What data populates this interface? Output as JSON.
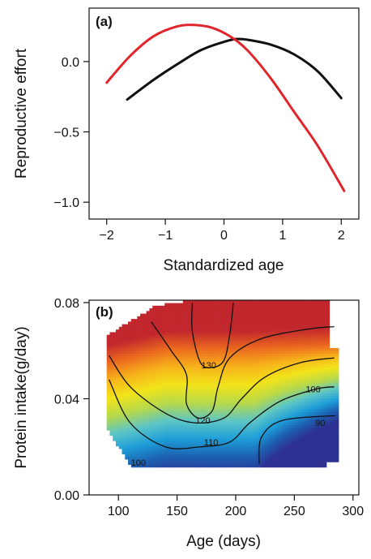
{
  "chart_data": [
    {
      "panel_label": "(a)",
      "type": "line",
      "xlabel": "Standardized age",
      "ylabel": "Reproductive effort",
      "xlim": [
        -2.3,
        2.3
      ],
      "ylim": [
        -1.12,
        0.38
      ],
      "xticks": [
        -2,
        -1,
        0,
        1,
        2
      ],
      "xtick_labels": [
        "−2",
        "−1",
        "0",
        "1",
        "2"
      ],
      "yticks": [
        0.0,
        -0.5,
        -1.0
      ],
      "ytick_labels": [
        "0.0",
        "−0.5",
        "−1.0"
      ],
      "series": [
        {
          "color": "#111111",
          "x": [
            -1.65,
            -1.2,
            -0.8,
            -0.4,
            0.0,
            0.2,
            0.4,
            0.8,
            1.2,
            1.6,
            2.0
          ],
          "y": [
            -0.27,
            -0.13,
            -0.02,
            0.08,
            0.14,
            0.16,
            0.155,
            0.12,
            0.05,
            -0.07,
            -0.26
          ]
        },
        {
          "color": "#e0262c",
          "x": [
            -2.0,
            -1.6,
            -1.2,
            -0.8,
            -0.5,
            -0.2,
            0.1,
            0.4,
            0.8,
            1.2,
            1.6,
            2.05
          ],
          "y": [
            -0.15,
            0.04,
            0.18,
            0.25,
            0.26,
            0.24,
            0.18,
            0.08,
            -0.12,
            -0.36,
            -0.6,
            -0.92
          ]
        }
      ]
    },
    {
      "panel_label": "(b)",
      "type": "heatmap",
      "xlabel": "Age (days)",
      "ylabel": "Protein intake(g/day)",
      "xlim": [
        75,
        305
      ],
      "ylim": [
        0.0,
        0.081
      ],
      "xticks": [
        100,
        150,
        200,
        250,
        300
      ],
      "xtick_labels": [
        "100",
        "150",
        "200",
        "250",
        "300"
      ],
      "yticks": [
        0.0,
        0.04,
        0.08
      ],
      "ytick_labels": [
        "0.00",
        "0.04",
        "0.08"
      ],
      "colorscale": [
        "#2e3192",
        "#1c5fb0",
        "#1e9ed8",
        "#5cc5c6",
        "#b7d94a",
        "#f2e41a",
        "#f7b41a",
        "#ec6a1f",
        "#c1272d"
      ],
      "surface_model": {
        "base": 113,
        "age_center": 175,
        "age_coef": -0.0055,
        "age_coef2": 0.00012,
        "protein_center": 0.04,
        "protein_coef": 900
      },
      "contours": [
        {
          "label": "90",
          "points": [
            [
              220,
              0.013
            ],
            [
              222,
              0.024
            ],
            [
              240,
              0.031
            ],
            [
              285,
              0.033
            ]
          ]
        },
        {
          "label": "100",
          "points": [
            [
              92,
              0.048
            ],
            [
              110,
              0.03
            ],
            [
              140,
              0.02
            ],
            [
              170,
              0.02
            ],
            [
              195,
              0.022
            ],
            [
              212,
              0.03
            ],
            [
              238,
              0.039
            ],
            [
              268,
              0.044
            ],
            [
              284,
              0.045
            ]
          ]
        },
        {
          "label": "110",
          "points": [
            [
              92,
              0.058
            ],
            [
              110,
              0.045
            ],
            [
              140,
              0.034
            ],
            [
              165,
              0.03
            ],
            [
              190,
              0.032
            ],
            [
              205,
              0.04
            ],
            [
              225,
              0.049
            ],
            [
              255,
              0.055
            ],
            [
              284,
              0.057
            ]
          ]
        },
        {
          "label": "120",
          "points": [
            [
              128,
              0.072
            ],
            [
              145,
              0.06
            ],
            [
              158,
              0.05
            ],
            [
              158,
              0.038
            ],
            [
              168,
              0.032
            ],
            [
              180,
              0.035
            ],
            [
              185,
              0.045
            ],
            [
              195,
              0.057
            ],
            [
              222,
              0.065
            ],
            [
              262,
              0.069
            ],
            [
              284,
              0.07
            ]
          ]
        },
        {
          "label": "130",
          "points": [
            [
              163,
              0.08
            ],
            [
              163,
              0.068
            ],
            [
              170,
              0.055
            ],
            [
              180,
              0.053
            ],
            [
              190,
              0.056
            ],
            [
              195,
              0.067
            ],
            [
              198,
              0.08
            ]
          ]
        }
      ],
      "contour_label_positions": [
        {
          "label": "90",
          "x": 272,
          "y": 0.03
        },
        {
          "label": "100",
          "x": 266,
          "y": 0.044
        },
        {
          "label": "100",
          "x": 117,
          "y": 0.0135
        },
        {
          "label": "110",
          "x": 179,
          "y": 0.022
        },
        {
          "label": "120",
          "x": 172,
          "y": 0.031
        },
        {
          "label": "130",
          "x": 177,
          "y": 0.054
        }
      ]
    }
  ]
}
